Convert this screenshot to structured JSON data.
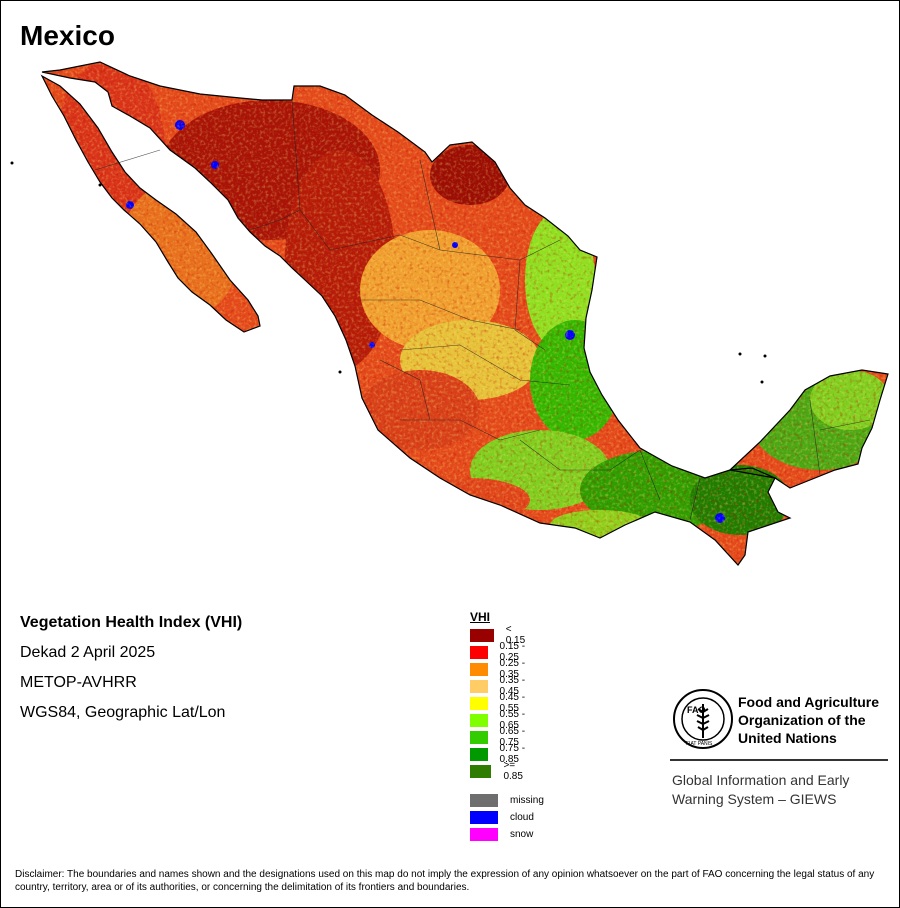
{
  "title": "Mexico",
  "info": {
    "product": "Vegetation Health Index (VHI)",
    "period": "Dekad 2 April 2025",
    "sensor": "METOP-AVHRR",
    "projection": "WGS84, Geographic Lat/Lon"
  },
  "legend": {
    "heading": "VHI",
    "classes": [
      {
        "label": "< 0.15",
        "color": "#990000"
      },
      {
        "label": "0.15 - 0.25",
        "color": "#ff0000"
      },
      {
        "label": "0.25 - 0.35",
        "color": "#ff8c00"
      },
      {
        "label": "0.35 - 0.45",
        "color": "#ffcc66"
      },
      {
        "label": "0.45 - 0.55",
        "color": "#ffff00"
      },
      {
        "label": "0.55 - 0.65",
        "color": "#7fff00"
      },
      {
        "label": "0.65 - 0.75",
        "color": "#33cc00"
      },
      {
        "label": "0.75 - 0.85",
        "color": "#009900"
      },
      {
        "label": ">= 0.85",
        "color": "#2e7d00"
      }
    ],
    "special": [
      {
        "label": "missing",
        "color": "#6e6e6e"
      },
      {
        "label": "cloud",
        "color": "#0000ff"
      },
      {
        "label": "snow",
        "color": "#ff00ff"
      }
    ]
  },
  "organization": {
    "name_line1": "Food and Agriculture",
    "name_line2": "Organization of the",
    "name_line3": "United Nations",
    "logo_text": "FAO",
    "logo_motto": "FIAT PANIS",
    "system_line1": "Global Information and Early",
    "system_line2": "Warning System – GIEWS"
  },
  "disclaimer": "Disclaimer: The boundaries and names shown and the designations used on this map do not imply the expression of any opinion whatsoever on the part of FAO concerning the legal status of any country, territory, area or of its authorities, or concerning the delimitation of its frontiers and boundaries."
}
